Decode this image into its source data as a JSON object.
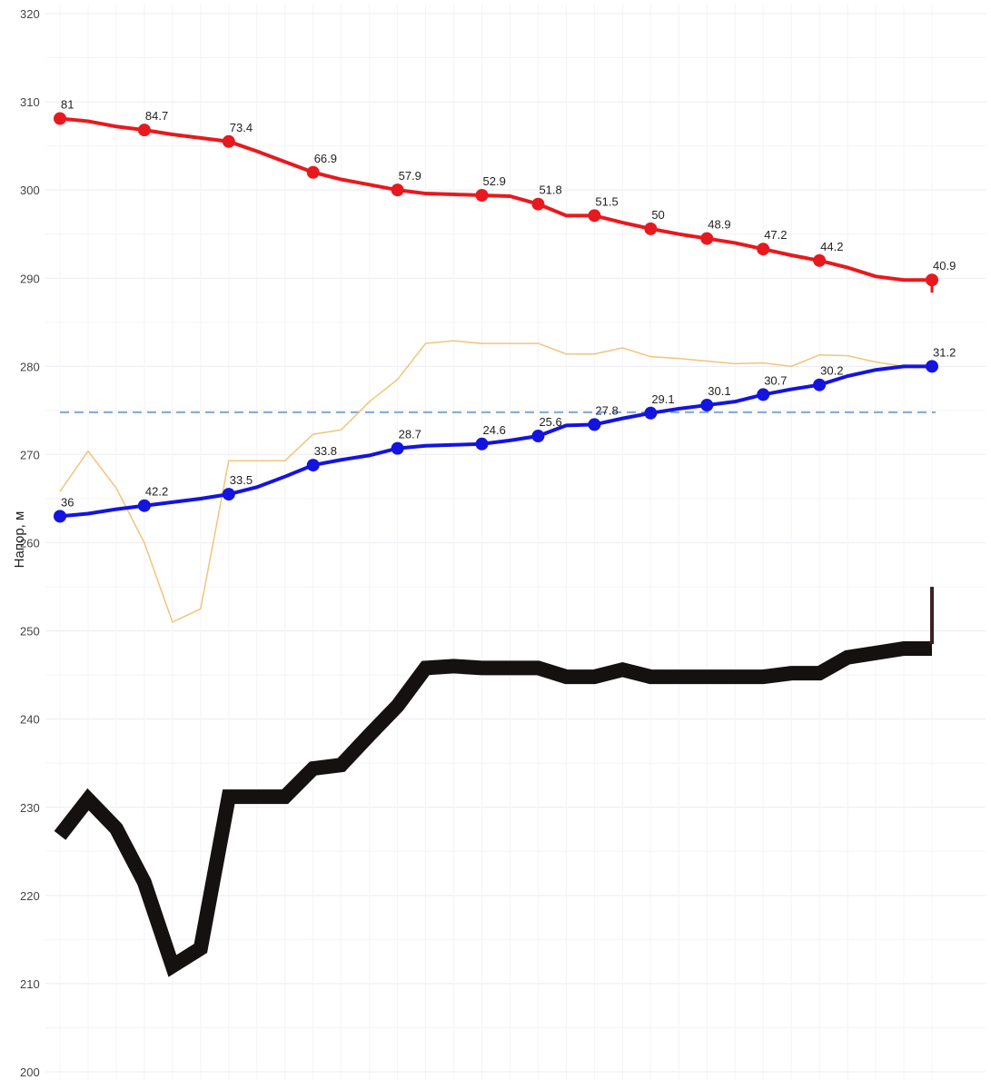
{
  "chart_data": {
    "type": "line",
    "ylabel": "Напор, м",
    "ylim": [
      200,
      320
    ],
    "yticks": [
      "200",
      "210",
      "220",
      "230",
      "240",
      "250",
      "260",
      "270",
      "280",
      "290",
      "300",
      "310",
      "320"
    ],
    "grid": true,
    "n_points": 32,
    "reference_line": {
      "y": 274.8,
      "style": "dashed",
      "color": "#7ea7d8"
    },
    "series": [
      {
        "color": "#e8191e",
        "x": [
          0,
          1,
          2,
          3,
          4,
          5,
          6,
          7,
          8,
          9,
          10,
          11,
          12,
          13,
          14,
          15,
          16,
          17,
          18,
          19,
          20,
          21,
          22,
          23,
          24,
          25,
          26,
          27,
          28,
          29,
          30,
          31
        ],
        "values": [
          308.1,
          307.8,
          307.2,
          306.8,
          306.3,
          305.9,
          305.5,
          304.4,
          303.2,
          302.0,
          301.2,
          300.6,
          300.0,
          299.6,
          299.5,
          299.4,
          299.3,
          298.4,
          297.1,
          297.1,
          296.3,
          295.6,
          295.0,
          294.5,
          294.0,
          293.3,
          292.6,
          292.0,
          291.2,
          290.2,
          289.8,
          289.8
        ],
        "markers": [
          0,
          3,
          6,
          9,
          12,
          15,
          17,
          19,
          21,
          23,
          25,
          27,
          31
        ],
        "labels": [
          "81",
          "84.7",
          "73.4",
          "66.9",
          "57.9",
          "52.9",
          "51.8",
          "51.5",
          "50",
          "48.9",
          "47.2",
          "44.2",
          "40.9"
        ]
      },
      {
        "color": "#1414e0",
        "x": [
          0,
          1,
          2,
          3,
          4,
          5,
          6,
          7,
          8,
          9,
          10,
          11,
          12,
          13,
          14,
          15,
          16,
          17,
          18,
          19,
          20,
          21,
          22,
          23,
          24,
          25,
          26,
          27,
          28,
          29,
          30,
          31
        ],
        "values": [
          263.0,
          263.3,
          263.8,
          264.2,
          264.6,
          265.0,
          265.5,
          266.3,
          267.5,
          268.8,
          269.4,
          269.9,
          270.7,
          271.0,
          271.1,
          271.2,
          271.6,
          272.1,
          273.3,
          273.4,
          274.1,
          274.7,
          275.2,
          275.6,
          276.0,
          276.8,
          277.4,
          277.9,
          278.9,
          279.6,
          280.0,
          280.0
        ],
        "markers": [
          0,
          3,
          6,
          9,
          12,
          15,
          17,
          19,
          21,
          23,
          25,
          27,
          31
        ],
        "labels": [
          "36",
          "42.2",
          "33.5",
          "33.8",
          "28.7",
          "24.6",
          "25.6",
          "27.8",
          "29.1",
          "30.1",
          "30.7",
          "30.2",
          "31.2"
        ]
      },
      {
        "color": "#f2c47a",
        "x": [
          0,
          1,
          2,
          3,
          4,
          5,
          6,
          7,
          8,
          9,
          10,
          11,
          12,
          13,
          14,
          15,
          16,
          17,
          18,
          19,
          20,
          21,
          22,
          23,
          24,
          25,
          26,
          27,
          28,
          29,
          30,
          31
        ],
        "values": [
          265.8,
          270.4,
          266.2,
          260.0,
          251.0,
          252.5,
          269.3,
          269.3,
          269.3,
          272.3,
          272.8,
          276.0,
          278.5,
          282.6,
          282.9,
          282.6,
          282.6,
          282.6,
          281.4,
          281.4,
          282.1,
          281.1,
          280.9,
          280.6,
          280.3,
          280.4,
          280.0,
          281.3,
          281.2,
          280.5,
          280.0,
          280.0
        ]
      },
      {
        "color": "#151111",
        "x": [
          0,
          1,
          2,
          3,
          4,
          5,
          6,
          7,
          8,
          9,
          10,
          11,
          12,
          13,
          14,
          15,
          16,
          17,
          18,
          19,
          20,
          21,
          22,
          23,
          24,
          25,
          26,
          27,
          28,
          29,
          30,
          31
        ],
        "values": [
          226.8,
          230.9,
          227.6,
          221.5,
          212.0,
          214.0,
          231.2,
          231.2,
          231.2,
          234.4,
          234.8,
          238.2,
          241.5,
          245.8,
          246.0,
          245.8,
          245.8,
          245.8,
          244.8,
          244.8,
          245.6,
          244.8,
          244.8,
          244.8,
          244.8,
          244.8,
          245.2,
          245.2,
          247.0,
          247.5,
          248.0,
          248.0
        ],
        "end_tick": [
          248.5,
          255.0
        ]
      }
    ]
  }
}
